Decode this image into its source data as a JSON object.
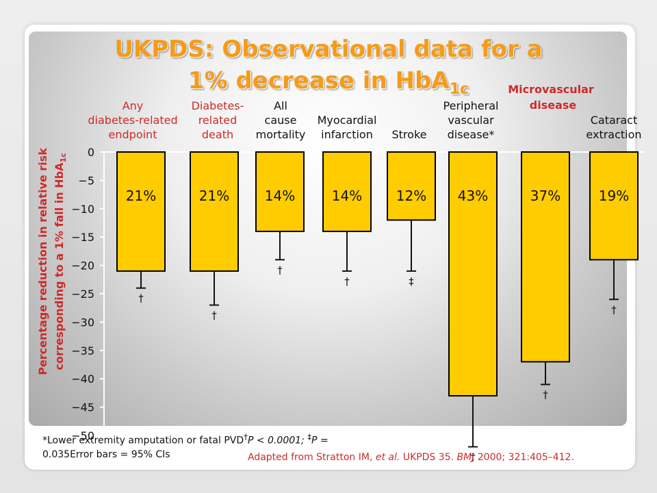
{
  "slide": {
    "title_line1": "UKPDS: Observational data for a",
    "title_line2": "1% decrease in HbA",
    "title_sub": "1c",
    "group_label": "Microvascular disease",
    "footnote_line1": "*Lower extremity amputation or fatal PVD",
    "footnote_dagger": "†",
    "footnote_p1": "P < 0.0001;",
    "footnote_ddagger": "‡",
    "footnote_p2": "P =",
    "footnote_line2": "0.035Error bars = 95% CIs",
    "source_prefix": "Adapted from Stratton IM,",
    "source_etal": "et al.",
    "source_mid": "UKPDS 35.",
    "source_journal": "BMJ",
    "source_suffix": "2000; 321:405–412."
  },
  "colors": {
    "bar": "#ffcc00",
    "bar_stroke": "#000000",
    "title": "#f59b1a",
    "accent_red": "#cc2b2b",
    "category_label": "#cc2b2b"
  },
  "chart_data": {
    "type": "bar",
    "ylabel_line1": "Percentage reduction in relative risk",
    "ylabel_line2": "corresponding to a 1% fall in HbA",
    "ylabel_sub": "1c",
    "ylim": [
      -50,
      0
    ],
    "yticks": [
      "0",
      "−5",
      "−10",
      "−15",
      "−20",
      "−25",
      "−30",
      "−35",
      "−40",
      "−45",
      "−50"
    ],
    "grid": false,
    "categories": [
      [
        "Any",
        "diabetes-related",
        "endpoint"
      ],
      [
        "Diabetes-",
        "related",
        "death"
      ],
      [
        "All",
        "cause",
        "mortality"
      ],
      [
        "Myocardial",
        "infarction"
      ],
      [
        "Stroke"
      ],
      [
        "Peripheral",
        "vascular",
        "disease*"
      ],
      [
        "",
        ""
      ],
      [
        "Cataract",
        "extraction"
      ]
    ],
    "values": [
      -21,
      -21,
      -14,
      -14,
      -12,
      -43,
      -37,
      -19
    ],
    "ci_lower": [
      -24,
      -27,
      -19,
      -21,
      -21,
      -52,
      -41,
      -26
    ],
    "data_labels": [
      "21%",
      "21%",
      "14%",
      "14%",
      "12%",
      "43%",
      "37%",
      "19%"
    ],
    "significance": [
      "†",
      "†",
      "†",
      "†",
      "‡",
      "†",
      "†",
      "†"
    ]
  }
}
